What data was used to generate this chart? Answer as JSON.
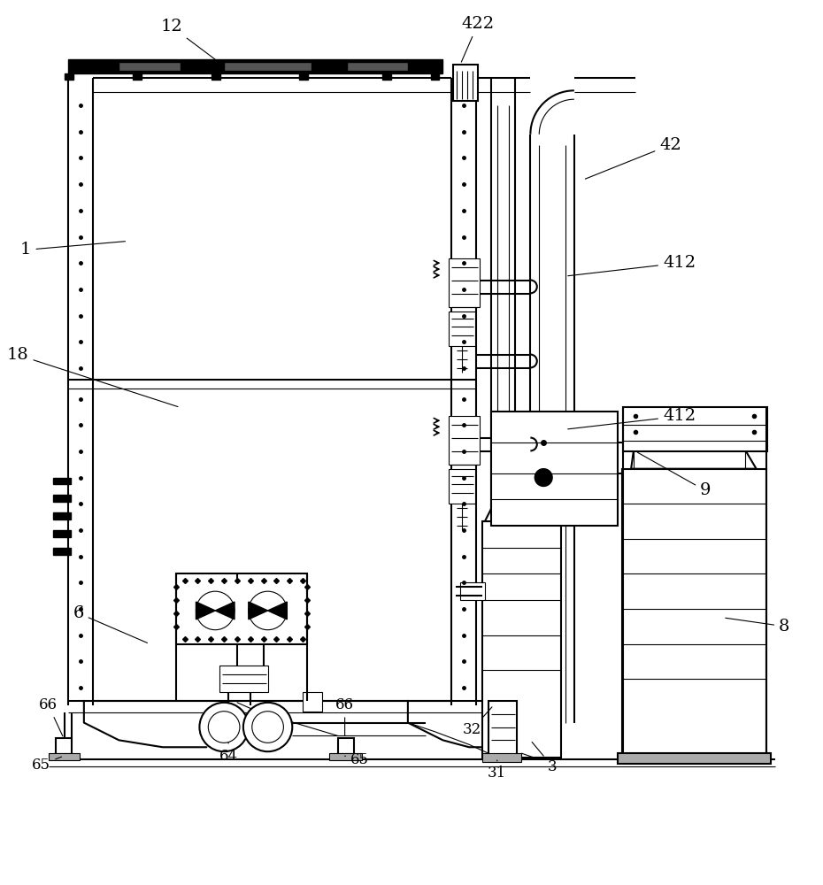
{
  "bg_color": "#ffffff",
  "lc": "#000000",
  "lw_main": 1.5,
  "lw_thin": 0.8,
  "lw_thick": 2.5,
  "fs_label": 14,
  "fs_small": 12
}
